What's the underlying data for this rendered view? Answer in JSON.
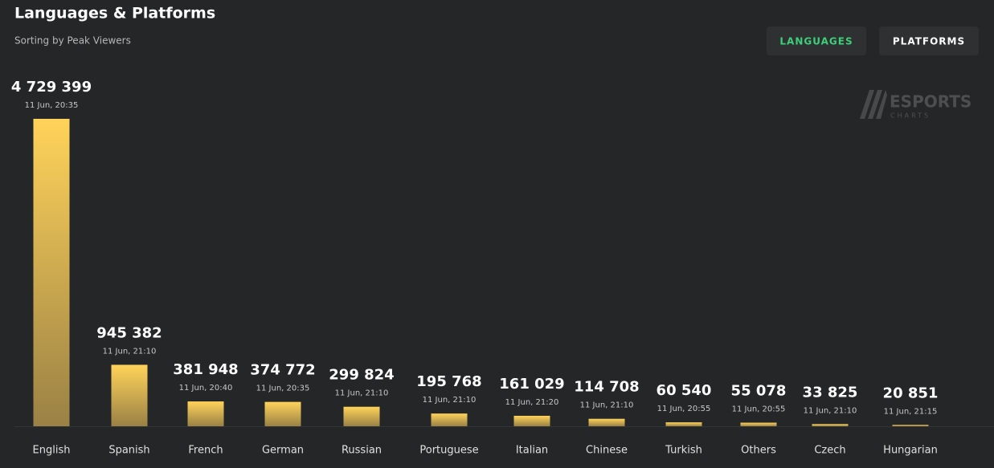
{
  "chart_data": {
    "type": "bar",
    "title": "Languages & Platforms",
    "subtitle": "Sorting by Peak Viewers",
    "tabs": [
      "LANGUAGES",
      "PLATFORMS"
    ],
    "watermark": [
      "ESPORTS",
      "CHARTS"
    ],
    "categories": [
      "English",
      "Spanish",
      "French",
      "German",
      "Russian",
      "Portuguese",
      "Italian",
      "Chinese",
      "Turkish",
      "Others",
      "Czech",
      "Hungarian"
    ],
    "values": [
      4729399,
      945382,
      381948,
      374772,
      299824,
      195768,
      161029,
      114708,
      60540,
      55078,
      33825,
      20851
    ],
    "value_labels": [
      "4 729 399",
      "945 382",
      "381 948",
      "374 772",
      "299 824",
      "195 768",
      "161 029",
      "114 708",
      "60 540",
      "55 078",
      "33 825",
      "20 851"
    ],
    "peak_times": [
      "11 Jun, 20:35",
      "11 Jun, 21:10",
      "11 Jun, 20:40",
      "11 Jun, 20:35",
      "11 Jun, 21:10",
      "11 Jun, 21:10",
      "11 Jun, 21:20",
      "11 Jun, 21:10",
      "11 Jun, 20:55",
      "11 Jun, 20:55",
      "11 Jun, 21:10",
      "11 Jun, 21:15"
    ],
    "color": "#ffd35a",
    "ylim": [
      0,
      4729399
    ]
  }
}
